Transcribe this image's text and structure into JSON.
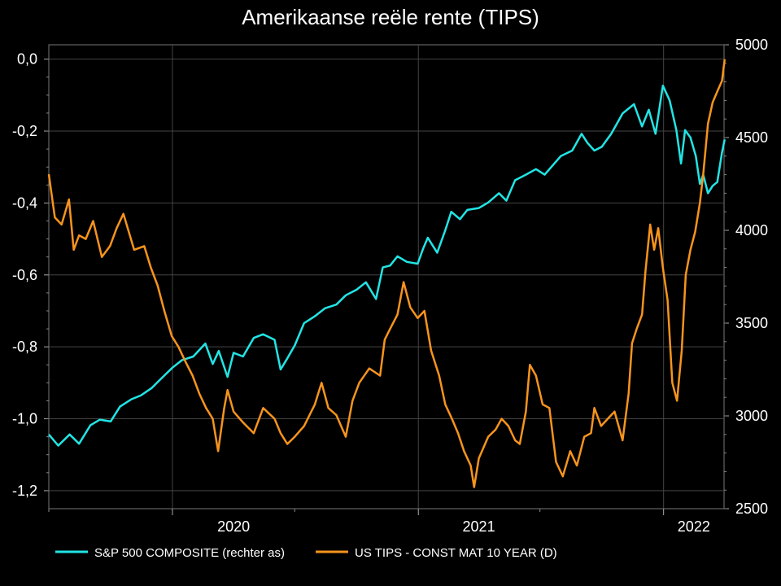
{
  "chart_data": {
    "type": "line",
    "title": "Amerikaanse reële rente (TIPS)",
    "background": "#000000",
    "grid": true,
    "legend_position": "bottom-left",
    "x_axis": {
      "range": [
        "2019-07-01",
        "2022-04-01"
      ],
      "tick_labels": [
        {
          "date": "2020-01-01",
          "label": "2020"
        },
        {
          "date": "2021-01-01",
          "label": "2021"
        },
        {
          "date": "2022-01-01",
          "label": "2022"
        }
      ]
    },
    "y_left": {
      "range": [
        -1.25,
        0.04
      ],
      "ticks": [
        0.0,
        -0.2,
        -0.4,
        -0.6,
        -0.8,
        -1.0,
        -1.2
      ],
      "tick_labels": [
        "0,0",
        "-0,2",
        "-0,4",
        "-0,6",
        "-0,8",
        "-1,0",
        "-1,2"
      ]
    },
    "y_right": {
      "range": [
        2500,
        5000
      ],
      "ticks": [
        5000,
        4500,
        4000,
        3500,
        3000,
        2500
      ],
      "tick_labels": [
        "5000",
        "4500",
        "4000",
        "3500",
        "3000",
        "2500"
      ]
    },
    "series": [
      {
        "name": "S&P 500 COMPOSITE (rechter as)",
        "axis": "right",
        "color": "#22e5e5",
        "points": [
          [
            "2019-07-01",
            2900
          ],
          [
            "2019-07-15",
            2840
          ],
          [
            "2019-08-01",
            2900
          ],
          [
            "2019-08-15",
            2850
          ],
          [
            "2019-09-01",
            2950
          ],
          [
            "2019-09-15",
            2980
          ],
          [
            "2019-10-01",
            2970
          ],
          [
            "2019-10-15",
            3050
          ],
          [
            "2019-11-01",
            3090
          ],
          [
            "2019-11-15",
            3110
          ],
          [
            "2019-12-01",
            3150
          ],
          [
            "2019-12-15",
            3200
          ],
          [
            "2020-01-01",
            3260
          ],
          [
            "2020-01-15",
            3300
          ],
          [
            "2020-02-01",
            3320
          ],
          [
            "2020-02-19",
            3390
          ],
          [
            "2020-03-01",
            3280
          ],
          [
            "2020-03-10",
            3350
          ],
          [
            "2020-03-23",
            3210
          ],
          [
            "2020-04-01",
            3340
          ],
          [
            "2020-04-15",
            3320
          ],
          [
            "2020-05-01",
            3420
          ],
          [
            "2020-05-15",
            3440
          ],
          [
            "2020-06-01",
            3410
          ],
          [
            "2020-06-10",
            3250
          ],
          [
            "2020-06-20",
            3310
          ],
          [
            "2020-07-01",
            3380
          ],
          [
            "2020-07-15",
            3500
          ],
          [
            "2020-08-01",
            3540
          ],
          [
            "2020-08-15",
            3580
          ],
          [
            "2020-09-01",
            3600
          ],
          [
            "2020-09-15",
            3650
          ],
          [
            "2020-10-01",
            3680
          ],
          [
            "2020-10-15",
            3720
          ],
          [
            "2020-10-30",
            3630
          ],
          [
            "2020-11-09",
            3800
          ],
          [
            "2020-11-20",
            3810
          ],
          [
            "2020-12-01",
            3860
          ],
          [
            "2020-12-15",
            3830
          ],
          [
            "2020-12-31",
            3820
          ],
          [
            "2021-01-08",
            3900
          ],
          [
            "2021-01-15",
            3960
          ],
          [
            "2021-01-29",
            3880
          ],
          [
            "2021-02-10",
            4000
          ],
          [
            "2021-02-19",
            4100
          ],
          [
            "2021-03-04",
            4060
          ],
          [
            "2021-03-15",
            4110
          ],
          [
            "2021-04-01",
            4120
          ],
          [
            "2021-04-15",
            4150
          ],
          [
            "2021-05-01",
            4200
          ],
          [
            "2021-05-12",
            4160
          ],
          [
            "2021-05-25",
            4270
          ],
          [
            "2021-06-10",
            4300
          ],
          [
            "2021-06-25",
            4330
          ],
          [
            "2021-07-08",
            4300
          ],
          [
            "2021-07-20",
            4350
          ],
          [
            "2021-08-01",
            4400
          ],
          [
            "2021-08-18",
            4430
          ],
          [
            "2021-09-01",
            4520
          ],
          [
            "2021-09-10",
            4470
          ],
          [
            "2021-09-20",
            4430
          ],
          [
            "2021-10-01",
            4450
          ],
          [
            "2021-10-15",
            4520
          ],
          [
            "2021-11-01",
            4630
          ],
          [
            "2021-11-18",
            4680
          ],
          [
            "2021-11-30",
            4560
          ],
          [
            "2021-12-10",
            4650
          ],
          [
            "2021-12-20",
            4520
          ],
          [
            "2021-12-31",
            4780
          ],
          [
            "2022-01-10",
            4700
          ],
          [
            "2022-01-20",
            4540
          ],
          [
            "2022-01-27",
            4360
          ],
          [
            "2022-02-02",
            4540
          ],
          [
            "2022-02-10",
            4500
          ],
          [
            "2022-02-18",
            4400
          ],
          [
            "2022-02-24",
            4250
          ],
          [
            "2022-03-01",
            4300
          ],
          [
            "2022-03-08",
            4200
          ],
          [
            "2022-03-15",
            4240
          ],
          [
            "2022-03-22",
            4260
          ],
          [
            "2022-03-29",
            4420
          ],
          [
            "2022-04-02",
            4490
          ]
        ]
      },
      {
        "name": "US TIPS - CONST MAT 10 YEAR (D)",
        "axis": "left",
        "color": "#f7941d",
        "points": [
          [
            "2019-07-01",
            -0.32
          ],
          [
            "2019-07-10",
            -0.44
          ],
          [
            "2019-07-20",
            -0.46
          ],
          [
            "2019-07-31",
            -0.39
          ],
          [
            "2019-08-07",
            -0.53
          ],
          [
            "2019-08-15",
            -0.49
          ],
          [
            "2019-08-25",
            -0.5
          ],
          [
            "2019-09-05",
            -0.45
          ],
          [
            "2019-09-18",
            -0.55
          ],
          [
            "2019-09-30",
            -0.52
          ],
          [
            "2019-10-10",
            -0.47
          ],
          [
            "2019-10-20",
            -0.43
          ],
          [
            "2019-11-05",
            -0.53
          ],
          [
            "2019-11-20",
            -0.52
          ],
          [
            "2019-11-30",
            -0.58
          ],
          [
            "2019-12-10",
            -0.63
          ],
          [
            "2019-12-20",
            -0.7
          ],
          [
            "2019-12-31",
            -0.77
          ],
          [
            "2020-01-10",
            -0.8
          ],
          [
            "2020-01-20",
            -0.84
          ],
          [
            "2020-01-31",
            -0.88
          ],
          [
            "2020-02-10",
            -0.93
          ],
          [
            "2020-02-20",
            -0.97
          ],
          [
            "2020-03-01",
            -1.0
          ],
          [
            "2020-03-09",
            -1.09
          ],
          [
            "2020-03-18",
            -0.97
          ],
          [
            "2020-03-23",
            -0.92
          ],
          [
            "2020-04-01",
            -0.98
          ],
          [
            "2020-04-15",
            -1.01
          ],
          [
            "2020-05-01",
            -1.04
          ],
          [
            "2020-05-15",
            -0.97
          ],
          [
            "2020-06-01",
            -1.0
          ],
          [
            "2020-06-10",
            -1.04
          ],
          [
            "2020-06-20",
            -1.07
          ],
          [
            "2020-07-01",
            -1.05
          ],
          [
            "2020-07-15",
            -1.02
          ],
          [
            "2020-07-31",
            -0.96
          ],
          [
            "2020-08-10",
            -0.9
          ],
          [
            "2020-08-20",
            -0.97
          ],
          [
            "2020-09-01",
            -0.99
          ],
          [
            "2020-09-15",
            -1.05
          ],
          [
            "2020-09-25",
            -0.95
          ],
          [
            "2020-10-05",
            -0.9
          ],
          [
            "2020-10-20",
            -0.86
          ],
          [
            "2020-11-05",
            -0.88
          ],
          [
            "2020-11-12",
            -0.78
          ],
          [
            "2020-11-20",
            -0.75
          ],
          [
            "2020-12-01",
            -0.71
          ],
          [
            "2020-12-10",
            -0.62
          ],
          [
            "2020-12-20",
            -0.69
          ],
          [
            "2020-12-31",
            -0.72
          ],
          [
            "2021-01-10",
            -0.7
          ],
          [
            "2021-01-20",
            -0.81
          ],
          [
            "2021-02-01",
            -0.88
          ],
          [
            "2021-02-10",
            -0.96
          ],
          [
            "2021-02-20",
            -1.0
          ],
          [
            "2021-03-01",
            -1.04
          ],
          [
            "2021-03-10",
            -1.09
          ],
          [
            "2021-03-20",
            -1.13
          ],
          [
            "2021-03-25",
            -1.19
          ],
          [
            "2021-04-01",
            -1.11
          ],
          [
            "2021-04-15",
            -1.05
          ],
          [
            "2021-04-26",
            -1.03
          ],
          [
            "2021-05-05",
            -1.0
          ],
          [
            "2021-05-15",
            -1.02
          ],
          [
            "2021-05-25",
            -1.06
          ],
          [
            "2021-06-01",
            -1.07
          ],
          [
            "2021-06-10",
            -0.98
          ],
          [
            "2021-06-16",
            -0.85
          ],
          [
            "2021-06-25",
            -0.88
          ],
          [
            "2021-07-05",
            -0.96
          ],
          [
            "2021-07-15",
            -0.97
          ],
          [
            "2021-07-25",
            -1.12
          ],
          [
            "2021-08-04",
            -1.16
          ],
          [
            "2021-08-15",
            -1.09
          ],
          [
            "2021-08-25",
            -1.13
          ],
          [
            "2021-09-05",
            -1.05
          ],
          [
            "2021-09-15",
            -1.04
          ],
          [
            "2021-09-20",
            -0.97
          ],
          [
            "2021-09-30",
            -1.02
          ],
          [
            "2021-10-10",
            -1.0
          ],
          [
            "2021-10-20",
            -0.98
          ],
          [
            "2021-11-01",
            -1.06
          ],
          [
            "2021-11-10",
            -0.93
          ],
          [
            "2021-11-15",
            -0.79
          ],
          [
            "2021-11-22",
            -0.75
          ],
          [
            "2021-11-30",
            -0.71
          ],
          [
            "2021-12-05",
            -0.59
          ],
          [
            "2021-12-12",
            -0.46
          ],
          [
            "2021-12-18",
            -0.53
          ],
          [
            "2021-12-24",
            -0.47
          ],
          [
            "2021-12-31",
            -0.58
          ],
          [
            "2022-01-07",
            -0.67
          ],
          [
            "2022-01-14",
            -0.9
          ],
          [
            "2022-01-21",
            -0.95
          ],
          [
            "2022-01-28",
            -0.81
          ],
          [
            "2022-02-03",
            -0.6
          ],
          [
            "2022-02-10",
            -0.53
          ],
          [
            "2022-02-17",
            -0.48
          ],
          [
            "2022-02-24",
            -0.4
          ],
          [
            "2022-03-01",
            -0.32
          ],
          [
            "2022-03-08",
            -0.18
          ],
          [
            "2022-03-15",
            -0.12
          ],
          [
            "2022-03-22",
            -0.09
          ],
          [
            "2022-03-29",
            -0.06
          ],
          [
            "2022-04-02",
            0.0
          ]
        ]
      }
    ]
  }
}
